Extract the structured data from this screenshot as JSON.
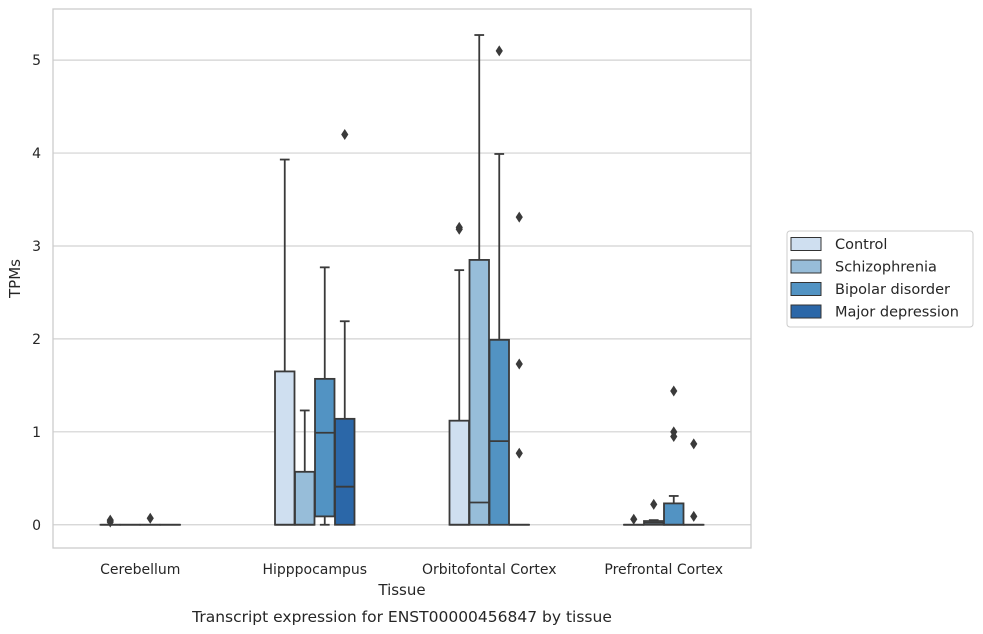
{
  "chart_data": {
    "type": "box",
    "title": "",
    "caption": "Transcript expression for ENST00000456847 by tissue",
    "xlabel": "Tissue",
    "ylabel": "TPMs",
    "ylim": [
      -0.25,
      5.55
    ],
    "yticks": [
      0,
      1,
      2,
      3,
      4,
      5
    ],
    "grid": "horizontal",
    "legend_position": "right",
    "categories": [
      "Cerebellum",
      "Hipppocampus",
      "Orbitofontal Cortex",
      "Prefrontal Cortex"
    ],
    "series": [
      {
        "name": "Control",
        "color": "#cfdff0",
        "boxes": [
          {
            "q1": 0,
            "median": 0,
            "q3": 0,
            "whisker_low": 0,
            "whisker_high": 0,
            "outliers": [
              0.05,
              0.03
            ]
          },
          {
            "q1": 0,
            "median": 0,
            "q3": 1.65,
            "whisker_low": 0,
            "whisker_high": 3.93,
            "outliers": []
          },
          {
            "q1": 0,
            "median": 0,
            "q3": 1.12,
            "whisker_low": 0,
            "whisker_high": 2.74,
            "outliers": [
              3.2,
              3.18
            ]
          },
          {
            "q1": 0,
            "median": 0,
            "q3": 0,
            "whisker_low": 0,
            "whisker_high": 0,
            "outliers": [
              0.06
            ]
          }
        ]
      },
      {
        "name": "Schizophrenia",
        "color": "#97bdd9",
        "boxes": [
          {
            "q1": 0,
            "median": 0,
            "q3": 0,
            "whisker_low": 0,
            "whisker_high": 0,
            "outliers": []
          },
          {
            "q1": 0,
            "median": 0,
            "q3": 0.57,
            "whisker_low": 0,
            "whisker_high": 1.23,
            "outliers": []
          },
          {
            "q1": 0,
            "median": 0.24,
            "q3": 2.85,
            "whisker_low": 0,
            "whisker_high": 5.27,
            "outliers": []
          },
          {
            "q1": 0,
            "median": 0.02,
            "q3": 0.04,
            "whisker_low": 0,
            "whisker_high": 0.05,
            "outliers": [
              0.22
            ]
          }
        ]
      },
      {
        "name": "Bipolar disorder",
        "color": "#5293c3",
        "boxes": [
          {
            "q1": 0,
            "median": 0,
            "q3": 0,
            "whisker_low": 0,
            "whisker_high": 0,
            "outliers": [
              0.07
            ]
          },
          {
            "q1": 0.09,
            "median": 0.99,
            "q3": 1.57,
            "whisker_low": 0,
            "whisker_high": 2.77,
            "outliers": []
          },
          {
            "q1": 0,
            "median": 0.9,
            "q3": 1.99,
            "whisker_low": 0,
            "whisker_high": 3.99,
            "outliers": [
              5.1
            ]
          },
          {
            "q1": 0,
            "median": 0,
            "q3": 0.23,
            "whisker_low": 0,
            "whisker_high": 0.31,
            "outliers": [
              1.44,
              1.0,
              0.95
            ]
          }
        ]
      },
      {
        "name": "Major depression",
        "color": "#2b67a8",
        "boxes": [
          {
            "q1": 0,
            "median": 0,
            "q3": 0,
            "whisker_low": 0,
            "whisker_high": 0,
            "outliers": []
          },
          {
            "q1": 0,
            "median": 0.41,
            "q3": 1.14,
            "whisker_low": 0,
            "whisker_high": 2.19,
            "outliers": [
              4.2
            ]
          },
          {
            "q1": 0,
            "median": 0,
            "q3": 0,
            "whisker_low": 0,
            "whisker_high": 0,
            "outliers": [
              3.31,
              1.73,
              0.77
            ]
          },
          {
            "q1": 0,
            "median": 0,
            "q3": 0,
            "whisker_low": 0,
            "whisker_high": 0,
            "outliers": [
              0.87,
              0.09
            ]
          }
        ]
      }
    ]
  }
}
